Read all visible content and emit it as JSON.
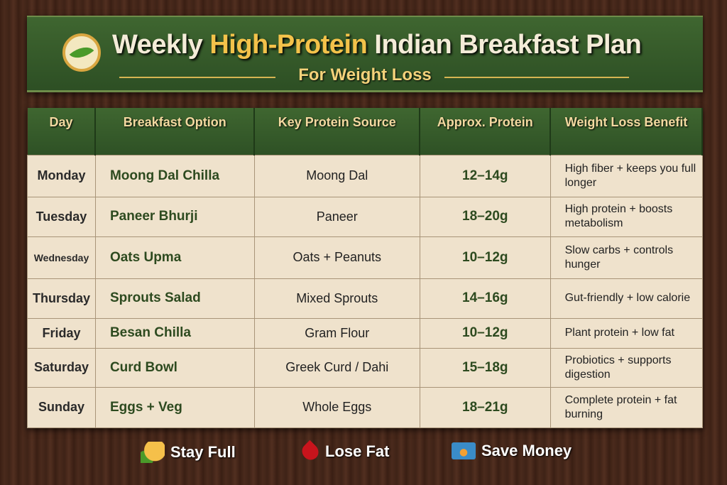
{
  "header": {
    "title_pre": "Weekly ",
    "title_highlight": "High-Protein",
    "title_post": " Indian Breakfast Plan",
    "subtitle": "For Weight Loss"
  },
  "table": {
    "columns": [
      "Day",
      "Breakfast Option",
      "Key Protein Source",
      "Approx. Protein",
      "Weight Loss Benefit"
    ],
    "rows": [
      {
        "day": "Monday",
        "option": "Moong Dal Chilla",
        "source": "Moong Dal",
        "protein": "12–14g",
        "benefit": "High fiber + keeps you full longer"
      },
      {
        "day": "Tuesday",
        "option": "Paneer Bhurji",
        "source": "Paneer",
        "protein": "18–20g",
        "benefit": "High protein + boosts metabolism"
      },
      {
        "day": "Wednesday",
        "option": "Oats Upma",
        "source": "Oats + Peanuts",
        "protein": "10–12g",
        "benefit": "Slow carbs + controls hunger"
      },
      {
        "day": "Thursday",
        "option": "Sprouts Salad",
        "source": "Mixed Sprouts",
        "protein": "14–16g",
        "benefit": "Gut-friendly + low calorie"
      },
      {
        "day": "Friday",
        "option": "Besan Chilla",
        "source": "Gram Flour",
        "protein": "10–12g",
        "benefit": "Plant protein + low fat"
      },
      {
        "day": "Saturday",
        "option": "Curd Bowl",
        "source": "Greek Curd / Dahi",
        "protein": "15–18g",
        "benefit": "Probiotics + supports digestion"
      },
      {
        "day": "Sunday",
        "option": "Eggs + Veg",
        "source": "Whole Eggs",
        "protein": "18–21g",
        "benefit": "Complete protein + fat burning"
      }
    ]
  },
  "footer": [
    {
      "label": "Stay Full",
      "icon": "food-icon"
    },
    {
      "label": "Lose Fat",
      "icon": "fat-drop-icon"
    },
    {
      "label": "Save Money",
      "icon": "wallet-icon"
    }
  ],
  "colors": {
    "green": "#2e5125",
    "gold": "#f3c24a",
    "cream": "#efe2cc"
  }
}
